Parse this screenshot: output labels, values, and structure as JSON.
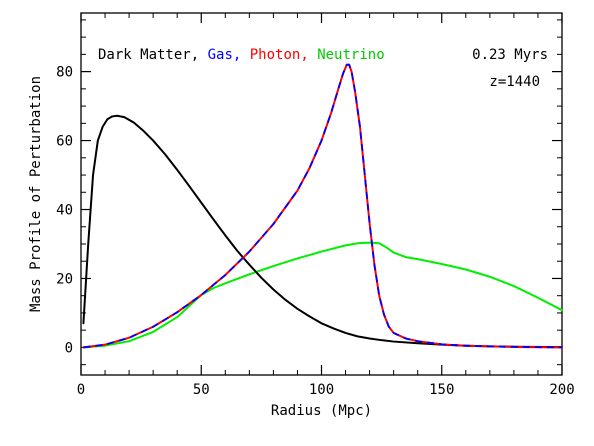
{
  "chart_data": {
    "type": "line",
    "xlabel": "Radius (Mpc)",
    "ylabel": "Mass Profile of Perturbation",
    "xlim": [
      0,
      200
    ],
    "ylim": [
      -8,
      97
    ],
    "x_ticks": [
      0,
      50,
      100,
      150,
      200
    ],
    "y_ticks": [
      0,
      20,
      40,
      60,
      80
    ],
    "grid": false,
    "legend_placement": "top-left",
    "annotations": {
      "time": "0.23 Myrs",
      "redshift": "z=1440"
    },
    "legend_entries": [
      {
        "text": "Dark Matter,",
        "color": "#000000"
      },
      {
        "text": "Gas,",
        "color": "#0000ff"
      },
      {
        "text": "Photon,",
        "color": "#ff0000"
      },
      {
        "text": "Neutrino",
        "color": "#00ee00"
      }
    ],
    "series": [
      {
        "name": "Dark Matter",
        "color": "#000000",
        "points": [
          [
            1,
            7
          ],
          [
            3,
            30
          ],
          [
            5,
            50
          ],
          [
            7,
            60
          ],
          [
            9,
            64
          ],
          [
            11,
            66.2
          ],
          [
            13,
            67
          ],
          [
            15,
            67.2
          ],
          [
            18,
            66.8
          ],
          [
            22,
            65.2
          ],
          [
            26,
            62.8
          ],
          [
            30,
            60
          ],
          [
            35,
            56
          ],
          [
            40,
            51.5
          ],
          [
            45,
            46.8
          ],
          [
            50,
            42
          ],
          [
            55,
            37.2
          ],
          [
            60,
            32.5
          ],
          [
            65,
            28
          ],
          [
            70,
            24
          ],
          [
            75,
            20.2
          ],
          [
            80,
            16.8
          ],
          [
            85,
            13.8
          ],
          [
            90,
            11.2
          ],
          [
            95,
            9
          ],
          [
            100,
            7
          ],
          [
            105,
            5.5
          ],
          [
            110,
            4.2
          ],
          [
            115,
            3.2
          ],
          [
            120,
            2.6
          ],
          [
            125,
            2.1
          ],
          [
            130,
            1.7
          ],
          [
            140,
            1.2
          ],
          [
            150,
            0.8
          ],
          [
            160,
            0.5
          ],
          [
            170,
            0.3
          ],
          [
            180,
            0.2
          ],
          [
            200,
            0.1
          ]
        ]
      },
      {
        "name": "Gas",
        "color": "#0000ff",
        "points": [
          [
            1,
            0
          ],
          [
            10,
            0.8
          ],
          [
            20,
            2.8
          ],
          [
            30,
            6
          ],
          [
            40,
            10.2
          ],
          [
            50,
            15.2
          ],
          [
            60,
            21
          ],
          [
            70,
            27.8
          ],
          [
            80,
            35.8
          ],
          [
            90,
            45.5
          ],
          [
            95,
            52
          ],
          [
            100,
            60
          ],
          [
            104,
            68
          ],
          [
            107,
            75
          ],
          [
            109,
            79.5
          ],
          [
            110.5,
            82
          ],
          [
            111.5,
            82
          ],
          [
            112.5,
            80
          ],
          [
            114,
            74
          ],
          [
            116,
            64
          ],
          [
            118,
            50
          ],
          [
            120,
            36
          ],
          [
            122,
            24
          ],
          [
            124,
            15
          ],
          [
            126,
            9.5
          ],
          [
            128,
            6
          ],
          [
            130,
            4.2
          ],
          [
            135,
            2.6
          ],
          [
            140,
            1.8
          ],
          [
            150,
            0.9
          ],
          [
            160,
            0.5
          ],
          [
            170,
            0.3
          ],
          [
            185,
            0.1
          ],
          [
            200,
            0
          ]
        ]
      },
      {
        "name": "Photon",
        "color": "#ff0000",
        "points": [
          [
            1,
            0
          ],
          [
            10,
            0.8
          ],
          [
            20,
            2.8
          ],
          [
            30,
            6
          ],
          [
            40,
            10.2
          ],
          [
            50,
            15.2
          ],
          [
            60,
            21
          ],
          [
            70,
            27.8
          ],
          [
            80,
            35.8
          ],
          [
            90,
            45.5
          ],
          [
            95,
            52
          ],
          [
            100,
            60
          ],
          [
            104,
            68
          ],
          [
            107,
            75
          ],
          [
            109,
            79.5
          ],
          [
            110.5,
            82
          ],
          [
            111.5,
            82
          ],
          [
            112.5,
            80
          ],
          [
            114,
            74
          ],
          [
            116,
            64
          ],
          [
            118,
            50
          ],
          [
            120,
            36
          ],
          [
            122,
            24
          ],
          [
            124,
            15
          ],
          [
            126,
            9.5
          ],
          [
            128,
            6
          ],
          [
            130,
            4.2
          ],
          [
            135,
            2.6
          ],
          [
            140,
            1.8
          ],
          [
            150,
            0.9
          ],
          [
            160,
            0.5
          ],
          [
            170,
            0.3
          ],
          [
            185,
            0.1
          ],
          [
            200,
            0
          ]
        ]
      },
      {
        "name": "Neutrino",
        "color": "#00ee00",
        "points": [
          [
            1,
            0
          ],
          [
            10,
            0.5
          ],
          [
            20,
            1.8
          ],
          [
            30,
            4.5
          ],
          [
            40,
            8.8
          ],
          [
            45,
            12
          ],
          [
            50,
            15.2
          ],
          [
            55,
            17.2
          ],
          [
            60,
            18.6
          ],
          [
            70,
            21.2
          ],
          [
            80,
            23.6
          ],
          [
            90,
            25.8
          ],
          [
            100,
            27.8
          ],
          [
            110,
            29.6
          ],
          [
            115,
            30.2
          ],
          [
            120,
            30.4
          ],
          [
            124,
            30.2
          ],
          [
            127,
            29
          ],
          [
            130,
            27.5
          ],
          [
            135,
            26.2
          ],
          [
            140,
            25.6
          ],
          [
            150,
            24.2
          ],
          [
            160,
            22.6
          ],
          [
            170,
            20.5
          ],
          [
            180,
            17.8
          ],
          [
            190,
            14.4
          ],
          [
            200,
            10.8
          ]
        ]
      }
    ]
  }
}
